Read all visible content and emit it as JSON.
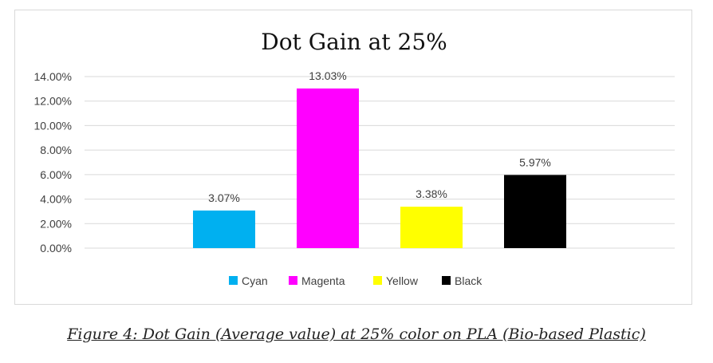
{
  "chart_data": {
    "type": "bar",
    "title": "Dot Gain at 25%",
    "categories": [
      "Cyan",
      "Magenta",
      "Yellow",
      "Black"
    ],
    "values": [
      3.07,
      13.03,
      3.38,
      5.97
    ],
    "data_labels": [
      "3.07%",
      "13.03%",
      "3.38%",
      "5.97%"
    ],
    "colors": [
      "#00b0f0",
      "#ff00ff",
      "#ffff00",
      "#000000"
    ],
    "ylim": [
      0,
      14
    ],
    "yticks": [
      0,
      2,
      4,
      6,
      8,
      10,
      12,
      14
    ],
    "ytick_labels": [
      "0.00%",
      "2.00%",
      "4.00%",
      "6.00%",
      "8.00%",
      "10.00%",
      "12.00%",
      "14.00%"
    ],
    "grid": true,
    "legend": "bottom",
    "legend_entries": [
      "Cyan",
      "Magenta",
      "Yellow",
      "Black"
    ]
  },
  "caption": "Figure 4: Dot Gain (Average value) at 25% color on PLA (Bio-based Plastic)"
}
